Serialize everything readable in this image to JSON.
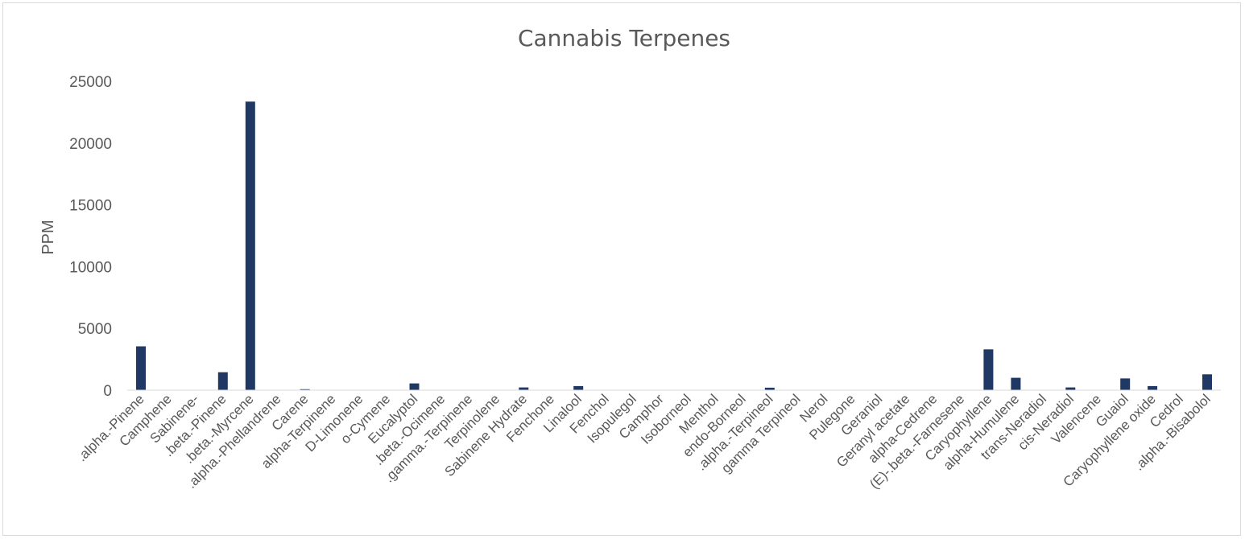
{
  "chart_data": {
    "type": "bar",
    "title": "Cannabis Terpenes",
    "xlabel": "",
    "ylabel": "PPM",
    "ylim": [
      0,
      25000
    ],
    "yticks": [
      "0",
      "5000",
      "10000",
      "15000",
      "20000",
      "25000"
    ],
    "grid": false,
    "legend": "none",
    "bar_color": "#203864",
    "categories": [
      ".alpha.-Pinene",
      "Camphene",
      "Sabinene-",
      ".beta.-Pinene",
      ".beta.-Myrcene",
      ".alpha.-Phellandrene",
      "Carene",
      "alpha-Terpinene",
      "D-Limonene",
      "o-Cymene",
      "Eucalyptol",
      ".beta.-Ocimene",
      ".gamma.-Terpinene",
      "Terpinolene",
      "Sabinene Hydrate",
      "Fenchone",
      "Linalool",
      "Fenchol",
      "Isopulegol",
      "Camphor",
      "Isoborneol",
      "Menthol",
      "endo-Borneol",
      ".alpha.-Terpineol",
      "gamma Terpineol",
      "Nerol",
      "Pulegone",
      "Geraniol",
      "Geranyl acetate",
      "alpha-Cedrene",
      "(E)-.beta.-Farnesene",
      "Caryophyllene",
      "alpha-Humulene",
      "trans-Neradiol",
      "cis-Neradiol",
      "Valencene",
      "Guaiol",
      "Caryophyllene oxide",
      "Cedrol",
      ".alpha.-Bisabolol"
    ],
    "values": [
      3550,
      0,
      0,
      1450,
      23350,
      0,
      80,
      0,
      0,
      0,
      550,
      0,
      0,
      0,
      220,
      0,
      330,
      0,
      0,
      0,
      0,
      0,
      0,
      200,
      0,
      0,
      0,
      0,
      0,
      0,
      0,
      3300,
      1000,
      0,
      220,
      0,
      950,
      330,
      0,
      1280
    ]
  }
}
